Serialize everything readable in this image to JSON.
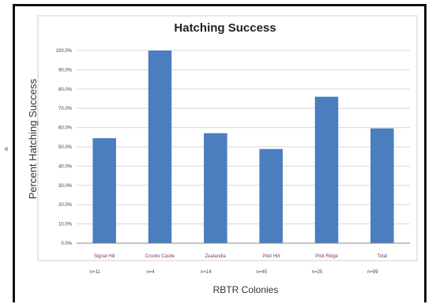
{
  "edge_label": "e",
  "chart_data": {
    "type": "bar",
    "title": "Hatching Success",
    "ylabel": "Percent Hatching Success",
    "xlabel": "RBTR Colonies",
    "categories": [
      "Signal Hill",
      "Crooks Castle",
      "Zealandia",
      "Pilot Hill",
      "Pilot Ridge",
      "Total"
    ],
    "sample_sizes": [
      "n=11",
      "n=4",
      "n=14",
      "n=45",
      "n=25",
      "n=99"
    ],
    "values": [
      54.5,
      100.0,
      57.1,
      48.9,
      76.0,
      59.6
    ],
    "ylim": [
      0,
      100
    ],
    "yticks": [
      "0.0%",
      "10.0%",
      "20.0%",
      "30.0%",
      "40.0%",
      "50.0%",
      "60.0%",
      "70.0%",
      "80.0%",
      "90.0%",
      "100.0%"
    ],
    "grid": true,
    "bar_color": "#4a7ebf"
  }
}
